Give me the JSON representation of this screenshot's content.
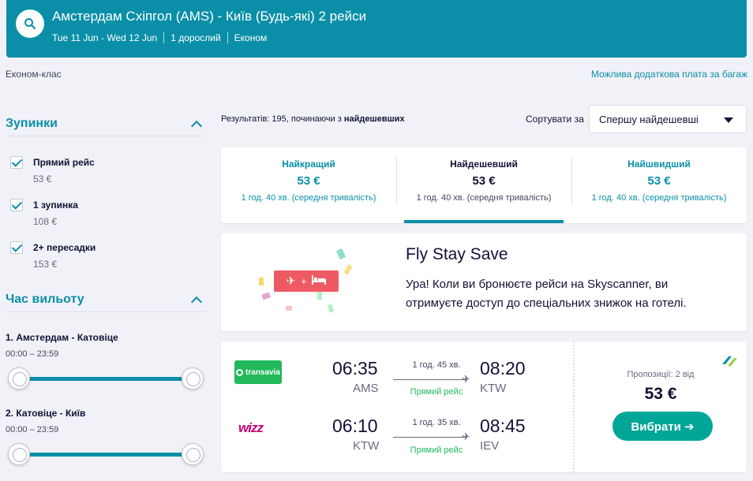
{
  "header": {
    "title": "Амстердам Схіпгол (AMS) - Київ (Будь-які) 2 рейси",
    "dates": "Tue 11 Jun - Wed 12 Jun",
    "passengers": "1 дорослий",
    "cabin": "Економ"
  },
  "subheader": {
    "cabin_class": "Економ-клас",
    "baggage_link": "Можлива додаткова плата за багаж"
  },
  "filters": {
    "stops": {
      "title": "Зупинки",
      "items": [
        {
          "label": "Прямий рейс",
          "price": "53 €",
          "checked": true
        },
        {
          "label": "1 зупинка",
          "price": "108 €",
          "checked": true
        },
        {
          "label": "2+ пересадки",
          "price": "153 €",
          "checked": true
        }
      ]
    },
    "departure": {
      "title": "Час вильоту",
      "legs": [
        {
          "label": "1. Амстердам - Катовіце",
          "range": "00:00 – 23:59"
        },
        {
          "label": "2. Катовіце - Київ",
          "range": "00:00 – 23:59"
        }
      ]
    }
  },
  "results": {
    "count_prefix": "Результатів: 195, починаючи з ",
    "count_bold": "найдешевших",
    "sort_label": "Сортувати за",
    "sort_value": "Спершу найдешевші"
  },
  "tabs": [
    {
      "name": "Найкращий",
      "price": "53 €",
      "duration": "1 год. 40 хв. (середня тривалість)",
      "active": false
    },
    {
      "name": "Найдешевший",
      "price": "53 €",
      "duration": "1 год. 40 хв. (середня тривалість)",
      "active": true
    },
    {
      "name": "Найшвидший",
      "price": "53 €",
      "duration": "1 год. 40 хв. (середня тривалість)",
      "active": false
    }
  ],
  "promo": {
    "title": "Fly Stay Save",
    "text": "Ура! Коли ви бронюєте рейси на Skyscanner, ви отримуєте доступ до спеціальних знижок на готелі.",
    "badge_plus": "+"
  },
  "flight": {
    "legs": [
      {
        "airline": "transavia",
        "dep_time": "06:35",
        "dep_code": "AMS",
        "duration": "1 год. 45 хв.",
        "stops": "Прямий рейс",
        "arr_time": "08:20",
        "arr_code": "KTW"
      },
      {
        "airline": "wizz",
        "dep_time": "06:10",
        "dep_code": "KTW",
        "duration": "1 год. 35 хв.",
        "stops": "Прямий рейс",
        "arr_time": "08:45",
        "arr_code": "IEV"
      }
    ],
    "offers": "Пропозиції: 2 від",
    "price": "53 €",
    "select_label": "Вибрати ➔",
    "colors": {
      "accent": "#0b8fa8",
      "cta": "#00a698",
      "direct": "#22b95b"
    }
  }
}
